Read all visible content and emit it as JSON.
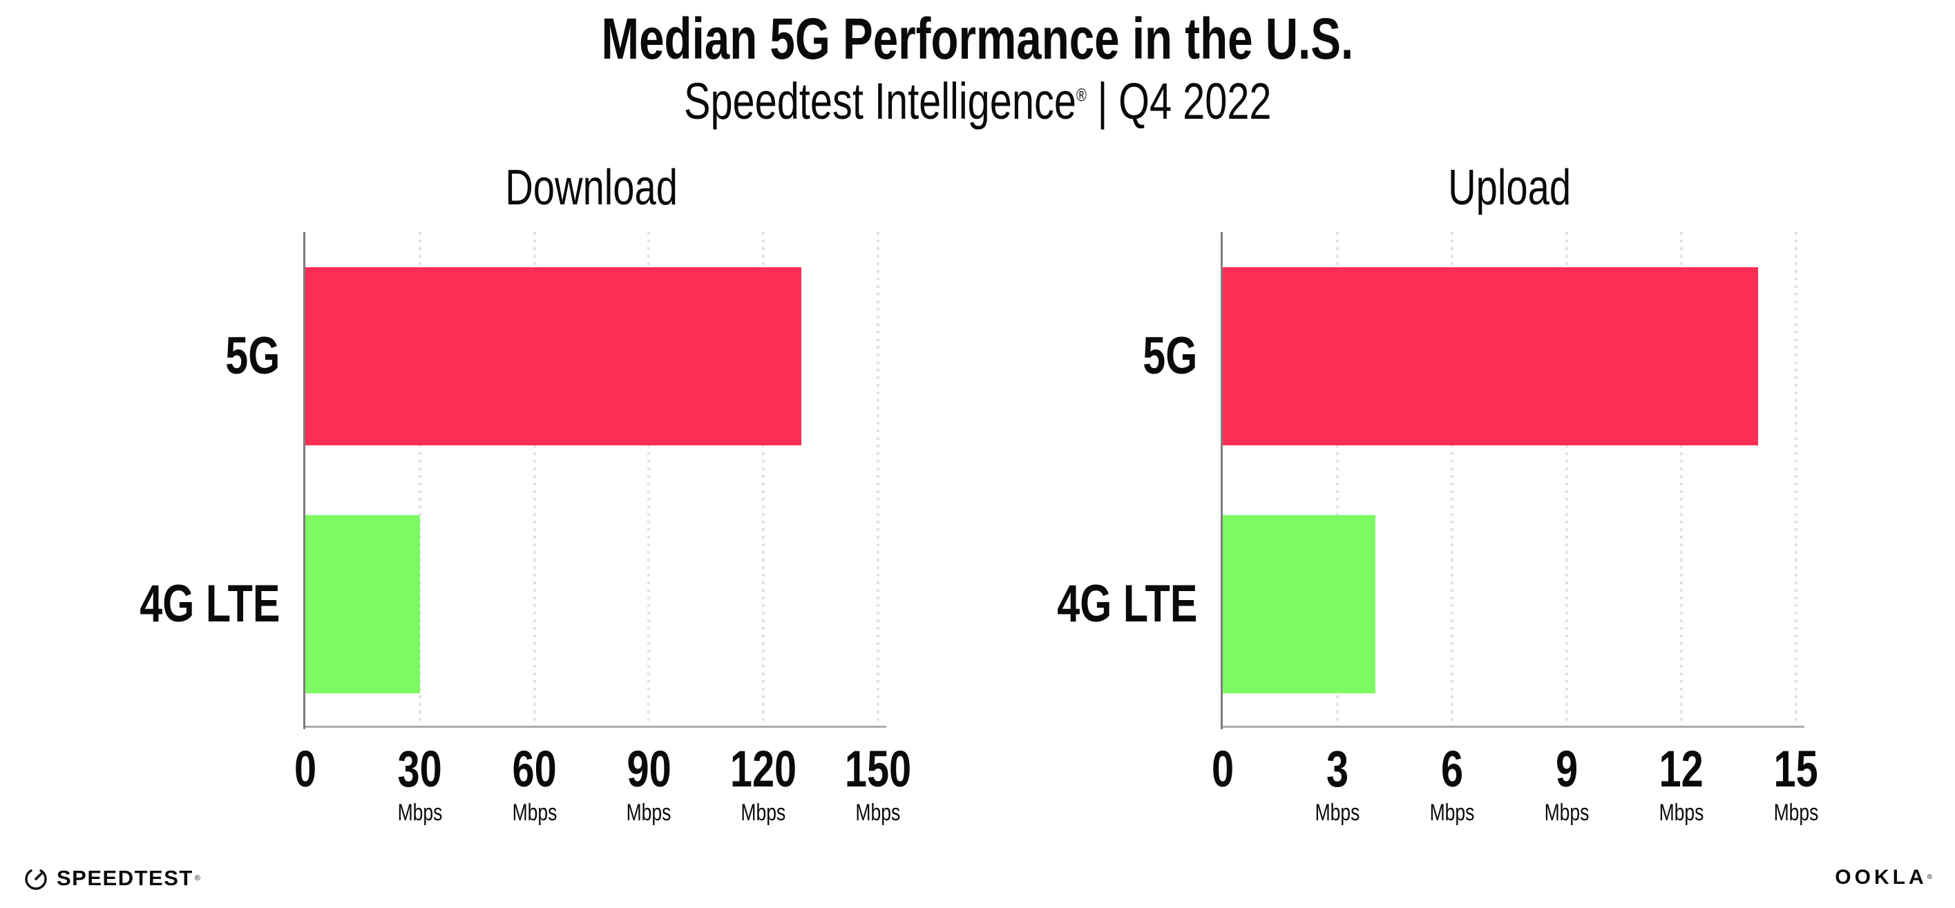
{
  "header": {
    "title": "Median 5G Performance in the U.S.",
    "subtitle_brand": "Speedtest Intelligence",
    "subtitle_reg_mark": "®",
    "subtitle_separator": "|",
    "subtitle_period": "Q4 2022"
  },
  "colors": {
    "bar_5g": "#FC2E56",
    "bar_4g_lte": "#7DFA63",
    "gridline": "#E1E1EC",
    "axis_y": "#7D7D7D",
    "axis_x": "#ABABAB",
    "text": "#0A0A0A",
    "background": "#FFFFFF"
  },
  "chart_data": [
    {
      "type": "bar",
      "orientation": "horizontal",
      "title": "Download",
      "categories": [
        "5G",
        "4G LTE"
      ],
      "values": [
        130,
        30
      ],
      "unit": "Mbps",
      "bar_colors": [
        "#FC2E56",
        "#7DFA63"
      ],
      "xlim": [
        0,
        150
      ],
      "xticks": [
        0,
        30,
        60,
        90,
        120,
        150
      ],
      "xtick_unit_label": "Mbps",
      "grid": "vertical-dotted",
      "legend": "none"
    },
    {
      "type": "bar",
      "orientation": "horizontal",
      "title": "Upload",
      "categories": [
        "5G",
        "4G LTE"
      ],
      "values": [
        14,
        4
      ],
      "unit": "Mbps",
      "bar_colors": [
        "#FC2E56",
        "#7DFA63"
      ],
      "xlim": [
        0,
        15
      ],
      "xticks": [
        0,
        3,
        6,
        9,
        12,
        15
      ],
      "xtick_unit_label": "Mbps",
      "grid": "vertical-dotted",
      "legend": "none"
    }
  ],
  "footer": {
    "speedtest_label": "SPEEDTEST",
    "speedtest_mark": "®",
    "ookla_label": "OOKLA",
    "ookla_mark": "®"
  }
}
